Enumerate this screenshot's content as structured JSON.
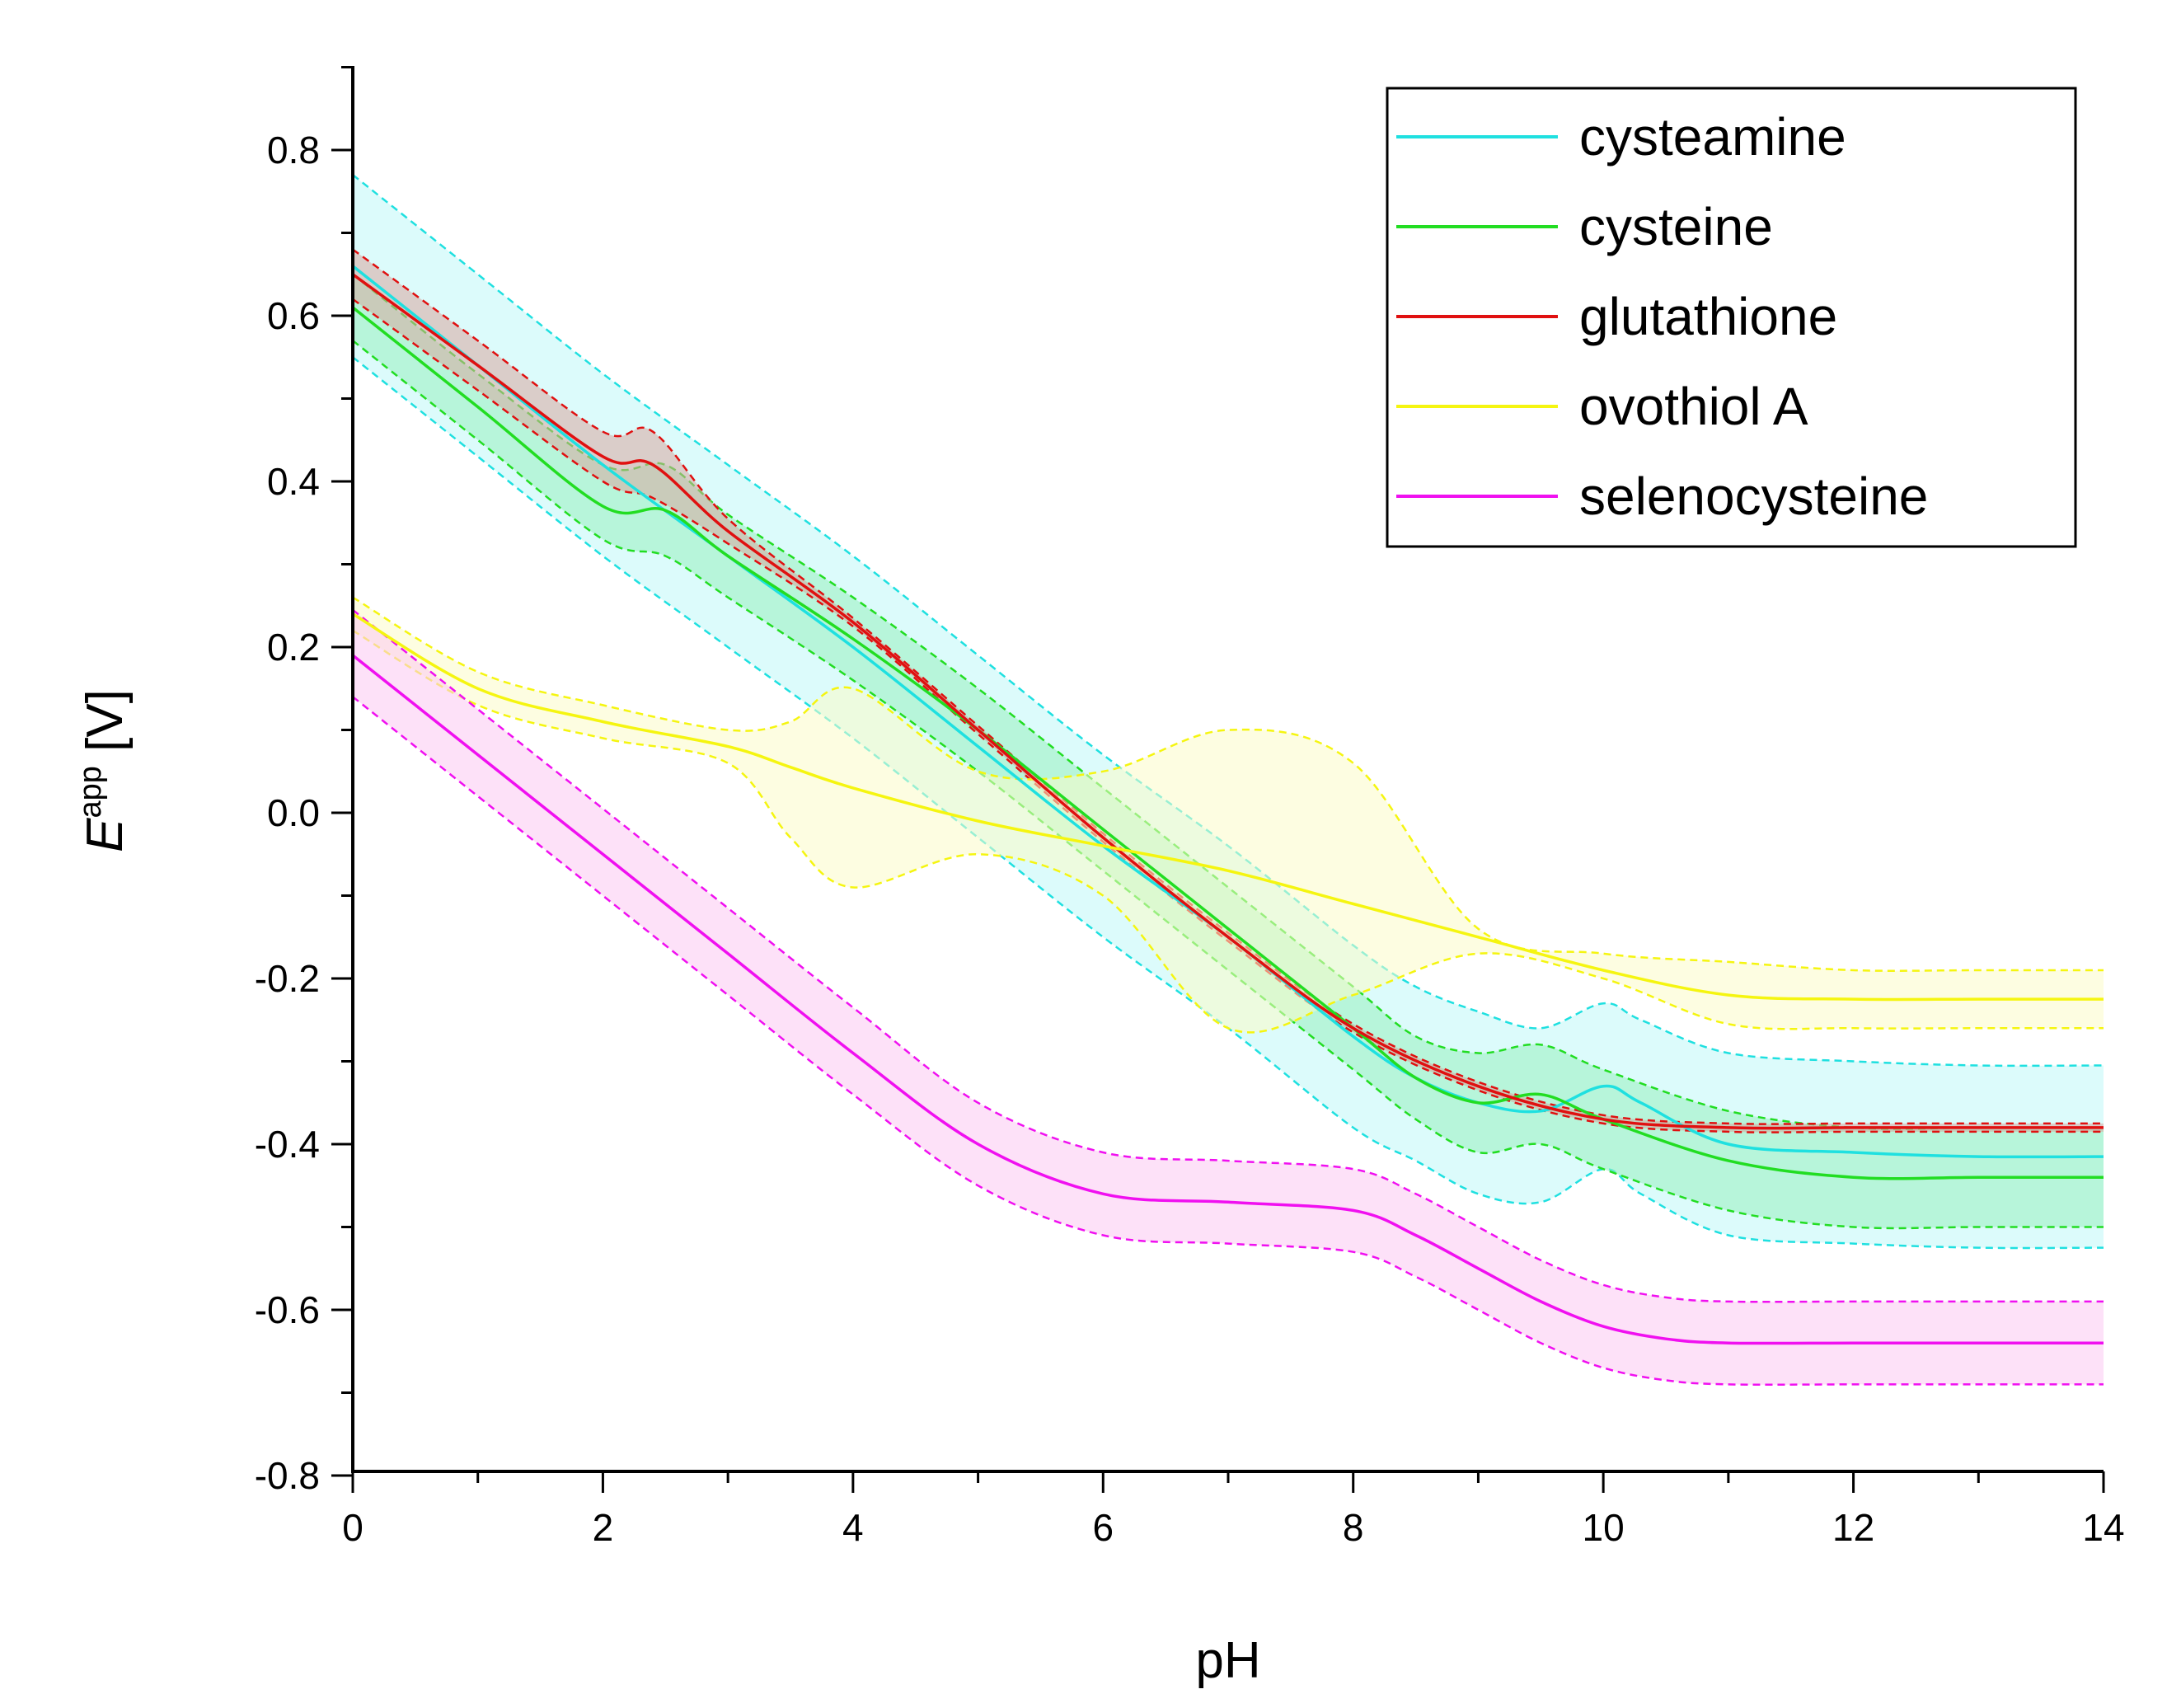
{
  "chart_data": {
    "type": "line",
    "title": "",
    "xlabel": "pH",
    "ylabel": {
      "symbol": "E",
      "superscript": "app",
      "unit": "[V]"
    },
    "xlim": [
      0,
      14
    ],
    "ylim": [
      -0.8,
      0.9
    ],
    "xticks": [
      0,
      2,
      4,
      6,
      8,
      10,
      12,
      14
    ],
    "yticks": [
      0.8,
      0.6,
      0.4,
      0.2,
      0.0,
      -0.2,
      -0.4,
      -0.6,
      -0.8
    ],
    "ytick_labels": [
      "0.8",
      "0.6",
      "0.4",
      "0.2",
      "0.0",
      "-0.2",
      "-0.4",
      "-0.6",
      "-0.8"
    ],
    "grid": false,
    "legend_position": "top-right",
    "series": [
      {
        "name": "cysteamine",
        "color": "#1fe0e0",
        "fill": "#bff8f8",
        "x": [
          0,
          1,
          2,
          3,
          4,
          5,
          6,
          7,
          8,
          8.5,
          9,
          9.5,
          10,
          10.3,
          11,
          12,
          13,
          14
        ],
        "y": [
          0.66,
          0.54,
          0.42,
          0.31,
          0.2,
          0.08,
          -0.04,
          -0.15,
          -0.27,
          -0.32,
          -0.35,
          -0.36,
          -0.33,
          -0.35,
          -0.4,
          -0.41,
          -0.415,
          -0.415
        ],
        "upper": [
          0.77,
          0.65,
          0.53,
          0.42,
          0.31,
          0.19,
          0.07,
          -0.04,
          -0.16,
          -0.21,
          -0.24,
          -0.26,
          -0.23,
          -0.25,
          -0.29,
          -0.3,
          -0.305,
          -0.305
        ],
        "lower": [
          0.55,
          0.43,
          0.31,
          0.2,
          0.09,
          -0.03,
          -0.15,
          -0.26,
          -0.38,
          -0.42,
          -0.46,
          -0.47,
          -0.43,
          -0.46,
          -0.51,
          -0.52,
          -0.525,
          -0.525
        ]
      },
      {
        "name": "cysteine",
        "color": "#22dd22",
        "fill": "#99f0c0",
        "x": [
          0,
          1,
          2,
          2.5,
          3,
          4,
          5,
          6,
          7,
          8,
          8.5,
          9,
          9.5,
          10,
          11,
          12,
          13,
          14
        ],
        "y": [
          0.61,
          0.49,
          0.37,
          0.365,
          0.31,
          0.21,
          0.1,
          -0.02,
          -0.14,
          -0.26,
          -0.32,
          -0.35,
          -0.34,
          -0.37,
          -0.42,
          -0.44,
          -0.44,
          -0.44
        ],
        "upper": [
          0.65,
          0.53,
          0.42,
          0.42,
          0.36,
          0.26,
          0.15,
          0.03,
          -0.09,
          -0.21,
          -0.27,
          -0.29,
          -0.28,
          -0.31,
          -0.36,
          -0.38,
          -0.38,
          -0.38
        ],
        "lower": [
          0.57,
          0.45,
          0.33,
          0.31,
          0.26,
          0.16,
          0.05,
          -0.07,
          -0.19,
          -0.31,
          -0.37,
          -0.41,
          -0.4,
          -0.43,
          -0.48,
          -0.5,
          -0.5,
          -0.5
        ]
      },
      {
        "name": "glutathione",
        "color": "#e01010",
        "fill": "#d8a8a0",
        "x": [
          0,
          1,
          2,
          2.4,
          3,
          4,
          5,
          6,
          7,
          8,
          9,
          10,
          11,
          12,
          13,
          14
        ],
        "y": [
          0.65,
          0.54,
          0.43,
          0.42,
          0.34,
          0.23,
          0.1,
          -0.03,
          -0.15,
          -0.26,
          -0.33,
          -0.37,
          -0.38,
          -0.38,
          -0.38,
          -0.38
        ],
        "upper": [
          0.68,
          0.57,
          0.46,
          0.46,
          0.355,
          0.235,
          0.105,
          -0.025,
          -0.145,
          -0.255,
          -0.325,
          -0.365,
          -0.375,
          -0.375,
          -0.375,
          -0.375
        ],
        "lower": [
          0.62,
          0.51,
          0.4,
          0.38,
          0.325,
          0.225,
          0.095,
          -0.035,
          -0.155,
          -0.265,
          -0.335,
          -0.375,
          -0.385,
          -0.385,
          -0.385,
          -0.385
        ]
      },
      {
        "name": "ovothiol A",
        "color": "#f5f510",
        "fill": "#fbfbc8",
        "x": [
          0,
          1,
          2,
          3,
          3.5,
          4,
          5,
          6,
          7,
          8,
          9,
          10,
          11,
          12,
          13,
          14
        ],
        "y": [
          0.24,
          0.15,
          0.11,
          0.08,
          0.055,
          0.03,
          -0.01,
          -0.04,
          -0.07,
          -0.11,
          -0.15,
          -0.19,
          -0.22,
          -0.225,
          -0.225,
          -0.225
        ],
        "upper": [
          0.26,
          0.17,
          0.13,
          0.1,
          0.11,
          0.15,
          0.05,
          0.05,
          0.1,
          0.06,
          -0.14,
          -0.17,
          -0.18,
          -0.19,
          -0.19,
          -0.19
        ],
        "lower": [
          0.22,
          0.13,
          0.09,
          0.06,
          -0.03,
          -0.09,
          -0.05,
          -0.1,
          -0.26,
          -0.22,
          -0.17,
          -0.2,
          -0.255,
          -0.26,
          -0.26,
          -0.26
        ]
      },
      {
        "name": "selenocysteine",
        "color": "#f010f0",
        "fill": "#fbc8f2",
        "x": [
          0,
          1,
          2,
          3,
          4,
          5,
          6,
          7,
          8,
          8.5,
          9,
          9.5,
          10,
          10.5,
          11,
          12,
          13,
          14
        ],
        "y": [
          0.19,
          0.07,
          -0.05,
          -0.17,
          -0.29,
          -0.4,
          -0.46,
          -0.47,
          -0.48,
          -0.51,
          -0.55,
          -0.59,
          -0.62,
          -0.635,
          -0.64,
          -0.64,
          -0.64,
          -0.64
        ],
        "upper": [
          0.245,
          0.125,
          0.005,
          -0.115,
          -0.235,
          -0.35,
          -0.41,
          -0.42,
          -0.43,
          -0.46,
          -0.5,
          -0.54,
          -0.57,
          -0.585,
          -0.59,
          -0.59,
          -0.59,
          -0.59
        ],
        "lower": [
          0.14,
          0.02,
          -0.1,
          -0.22,
          -0.34,
          -0.45,
          -0.51,
          -0.52,
          -0.53,
          -0.56,
          -0.6,
          -0.64,
          -0.67,
          -0.685,
          -0.69,
          -0.69,
          -0.69,
          -0.69
        ]
      }
    ]
  }
}
